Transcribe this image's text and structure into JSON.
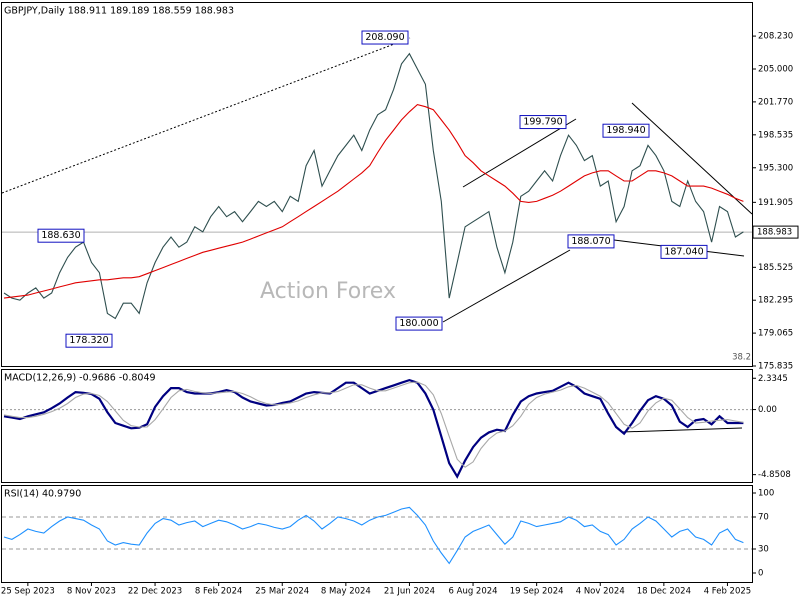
{
  "chart_data": [
    {
      "type": "line",
      "title": "GBPJPY,Daily  188.911 189.189 188.559 188.983",
      "watermark": "Action Forex",
      "note": "38.2",
      "ylim": [
        175.835,
        211.48
      ],
      "yticks": [
        {
          "value": 208.23,
          "label": "208.230"
        },
        {
          "value": 205,
          "label": "205.000"
        },
        {
          "value": 201.77,
          "label": "201.770"
        },
        198.535,
        {
          "value": 195.3,
          "label": "195.300"
        },
        191.905,
        185.525,
        182.295,
        179.065,
        175.835
      ],
      "last_price": {
        "value": 188.983,
        "label": "188.983"
      },
      "annotations": [
        {
          "value": 208.09,
          "label": "208.090"
        },
        {
          "value": 199.79,
          "label": "199.790"
        },
        {
          "value": 198.94,
          "label": "198.940"
        },
        {
          "value": 188.63,
          "label": "188.630"
        },
        {
          "value": 188.07,
          "label": "188.070"
        },
        {
          "value": 187.04,
          "label": "187.040"
        },
        {
          "value": 178.32,
          "label": "178.320"
        },
        {
          "value": 180,
          "label": "180.000"
        }
      ],
      "series": [
        {
          "color": "#2f4f4f",
          "values": [
            183,
            182.5,
            182.3,
            183,
            183.5,
            182.5,
            183,
            185,
            186.5,
            187.5,
            188,
            186,
            185,
            181,
            180.5,
            182,
            182,
            181,
            184,
            186,
            187.5,
            188.5,
            187.5,
            188,
            189.5,
            189,
            190.5,
            191.5,
            190.5,
            191,
            190,
            191,
            192,
            191.5,
            192,
            191,
            192.5,
            192,
            195.5,
            197,
            193.5,
            195,
            196.5,
            197.5,
            198.5,
            197,
            199,
            200.5,
            201,
            203,
            205.5,
            206.5,
            205,
            203.5,
            197,
            192,
            182.5,
            186,
            189.5,
            190,
            190.5,
            191,
            187.5,
            185,
            188,
            192.5,
            193,
            194,
            195,
            194,
            196.5,
            198.5,
            197.5,
            196,
            196.5,
            193.5,
            194,
            190,
            191.5,
            195,
            195.5,
            197.5,
            196.5,
            195,
            192,
            191.5,
            194,
            192,
            191,
            188,
            191.5,
            191,
            188.5,
            189
          ]
        },
        {
          "color": "#e00000",
          "values": [
            182.5,
            182.6,
            182.7,
            182.8,
            183,
            183.2,
            183.4,
            183.6,
            183.8,
            184,
            184.1,
            184.2,
            184.3,
            184.3,
            184.4,
            184.5,
            184.5,
            184.6,
            184.9,
            185.2,
            185.5,
            185.8,
            186.1,
            186.4,
            186.7,
            187,
            187.2,
            187.4,
            187.6,
            187.8,
            188,
            188.3,
            188.6,
            188.9,
            189.2,
            189.5,
            190,
            190.5,
            191,
            191.5,
            192,
            192.5,
            193,
            193.6,
            194.2,
            194.8,
            195.5,
            196.8,
            198,
            199,
            200,
            200.8,
            201.5,
            201.3,
            201,
            200,
            199,
            197.8,
            196.5,
            195.8,
            195,
            194.5,
            194,
            193.5,
            192.8,
            192,
            191.9,
            192,
            192.3,
            192.6,
            193,
            193.5,
            194,
            194.5,
            194.8,
            195,
            195,
            194.5,
            194,
            194,
            194.5,
            195,
            195,
            194.8,
            194.5,
            194,
            193.5,
            193.5,
            193.5,
            193.3,
            193,
            192.7,
            192.3,
            192
          ]
        }
      ]
    },
    {
      "type": "line",
      "title": "MACD(12,26,9) -0.9686 -0.8049",
      "ylim": [
        -5.4,
        2.95
      ],
      "yticks": [
        2.3345,
        {
          "value": 0,
          "label": "0.00"
        },
        -4.8508
      ],
      "levels": [
        0
      ],
      "series": [
        {
          "color": "#000080",
          "values": [
            -0.5,
            -0.6,
            -0.7,
            -0.5,
            -0.35,
            -0.2,
            0.1,
            0.45,
            0.9,
            1.3,
            1.25,
            1.15,
            0.8,
            -0.2,
            -1.0,
            -1.2,
            -1.4,
            -1.35,
            -1.1,
            0.2,
            1.0,
            1.6,
            1.6,
            1.3,
            1.2,
            1.2,
            1.2,
            1.3,
            1.45,
            1.3,
            0.9,
            0.6,
            0.45,
            0.3,
            0.35,
            0.5,
            0.6,
            0.9,
            1.2,
            1.3,
            1.25,
            1.2,
            1.6,
            2.0,
            2.0,
            1.6,
            1.2,
            1.4,
            1.6,
            1.8,
            2.0,
            2.2,
            2.0,
            1.2,
            0.0,
            -2.0,
            -4.0,
            -5.0,
            -3.8,
            -2.8,
            -2.1,
            -1.7,
            -1.5,
            -1.6,
            -0.4,
            0.6,
            1.0,
            1.2,
            1.3,
            1.4,
            1.7,
            2.0,
            1.7,
            1.2,
            1.0,
            0.8,
            -0.3,
            -1.3,
            -1.8,
            -1.0,
            -0.1,
            0.7,
            1.0,
            0.8,
            0.3,
            -0.9,
            -1.3,
            -0.8,
            -0.7,
            -1.1,
            -0.5,
            -1.0,
            -1.0,
            -1.0
          ]
        },
        {
          "color": "#a8a8a8",
          "values": [
            -0.4,
            -0.5,
            -0.6,
            -0.6,
            -0.5,
            -0.35,
            -0.15,
            0.1,
            0.45,
            0.9,
            1.15,
            1.2,
            1.05,
            0.6,
            -0.1,
            -0.8,
            -1.2,
            -1.3,
            -1.3,
            -0.75,
            0.05,
            0.9,
            1.4,
            1.5,
            1.35,
            1.25,
            1.2,
            1.25,
            1.3,
            1.35,
            1.2,
            0.95,
            0.65,
            0.45,
            0.35,
            0.4,
            0.5,
            0.65,
            0.9,
            1.1,
            1.25,
            1.25,
            1.35,
            1.6,
            1.85,
            1.85,
            1.6,
            1.4,
            1.4,
            1.6,
            1.8,
            2.0,
            2.05,
            1.8,
            1.1,
            -0.3,
            -2.0,
            -3.7,
            -4.3,
            -3.9,
            -2.9,
            -2.2,
            -1.75,
            -1.6,
            -1.2,
            -0.5,
            0.4,
            0.9,
            1.15,
            1.3,
            1.45,
            1.7,
            1.8,
            1.6,
            1.3,
            1.0,
            0.5,
            -0.3,
            -1.1,
            -1.4,
            -1.0,
            -0.1,
            0.5,
            0.85,
            0.7,
            0.05,
            -0.6,
            -1.0,
            -0.95,
            -0.85,
            -0.8,
            -0.75,
            -0.85,
            -0.95
          ]
        }
      ]
    },
    {
      "type": "line",
      "title": "RSI(14) 40.9790",
      "ylim": [
        -11.25,
        108.75
      ],
      "yticks": [
        100,
        70,
        30,
        0
      ],
      "levels": [
        70,
        30
      ],
      "categories": [
        null,
        null,
        null,
        "25 Sep 2023",
        null,
        null,
        null,
        null,
        null,
        null,
        null,
        "8 Nov 2023",
        null,
        null,
        null,
        null,
        null,
        null,
        null,
        "22 Dec 2023",
        null,
        null,
        null,
        null,
        null,
        null,
        null,
        "8 Feb 2024",
        null,
        null,
        null,
        null,
        null,
        null,
        null,
        "25 Mar 2024",
        null,
        null,
        null,
        null,
        null,
        null,
        null,
        "8 May 2024",
        null,
        null,
        null,
        null,
        null,
        null,
        null,
        "21 Jun 2024",
        null,
        null,
        null,
        null,
        null,
        null,
        null,
        "6 Aug 2024",
        null,
        null,
        null,
        null,
        null,
        null,
        null,
        "19 Sep 2024",
        null,
        null,
        null,
        null,
        null,
        null,
        null,
        "4 Nov 2024",
        null,
        null,
        null,
        null,
        null,
        null,
        null,
        "18 Dec 2024",
        null,
        null,
        null,
        null,
        null,
        null,
        null,
        "4 Feb 2025",
        null,
        null
      ],
      "series": [
        {
          "color": "#1e90ff",
          "values": [
            45,
            42,
            48,
            55,
            52,
            50,
            58,
            65,
            70,
            68,
            66,
            60,
            55,
            40,
            35,
            38,
            36,
            35,
            50,
            62,
            68,
            66,
            60,
            63,
            65,
            58,
            62,
            66,
            64,
            60,
            55,
            58,
            62,
            60,
            57,
            55,
            58,
            66,
            72,
            65,
            55,
            62,
            70,
            68,
            65,
            60,
            66,
            70,
            72,
            76,
            80,
            82,
            72,
            60,
            40,
            25,
            12,
            28,
            45,
            52,
            56,
            60,
            48,
            36,
            45,
            65,
            62,
            58,
            60,
            62,
            64,
            70,
            66,
            58,
            60,
            52,
            48,
            35,
            42,
            55,
            62,
            70,
            65,
            55,
            45,
            52,
            55,
            45,
            42,
            35,
            50,
            55,
            42,
            38
          ]
        }
      ]
    }
  ]
}
